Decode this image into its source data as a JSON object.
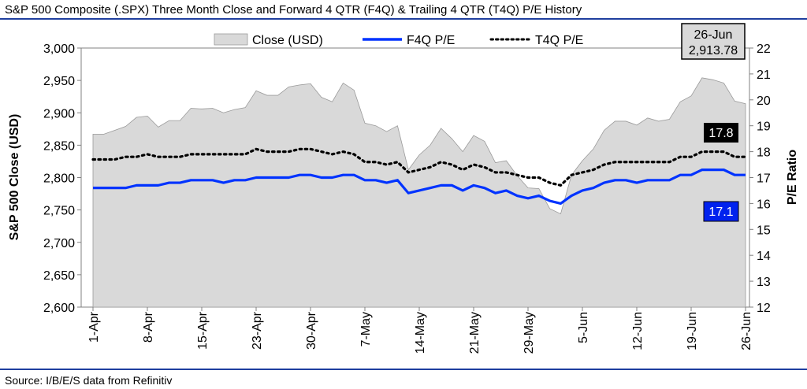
{
  "chart_data": {
    "type": "line",
    "title": "S&P 500 Composite (.SPX) Three Month Close and Forward 4 QTR (F4Q) & Trailing 4 QTR (T4Q) P/E History",
    "source": "Source: I/B/E/S data from Refinitiv",
    "ylabel": "S&P 500 Close (USD)",
    "y2label": "P/E Ratio",
    "ylim": [
      2600,
      3000
    ],
    "y2lim": [
      12,
      22
    ],
    "y_ticks": [
      "2,600",
      "2,650",
      "2,700",
      "2,750",
      "2,800",
      "2,850",
      "2,900",
      "2,950",
      "3,000"
    ],
    "y2_ticks": [
      "12",
      "13",
      "14",
      "15",
      "16",
      "17",
      "18",
      "19",
      "20",
      "21",
      "22"
    ],
    "x_ticks": [
      "1-Apr",
      "8-Apr",
      "15-Apr",
      "23-Apr",
      "30-Apr",
      "7-May",
      "14-May",
      "21-May",
      "29-May",
      "5-Jun",
      "12-Jun",
      "19-Jun",
      "26-Jun"
    ],
    "x_tick_index": [
      0,
      5,
      10,
      15,
      20,
      25,
      30,
      35,
      40,
      45,
      50,
      55,
      60
    ],
    "legend": [
      "Close (USD)",
      "F4Q P/E",
      "T4Q P/E"
    ],
    "series": [
      {
        "name": "Close (USD)",
        "type": "area",
        "axis": "left",
        "color": "#d9d9d9",
        "values": [
          2867,
          2867,
          2873,
          2879,
          2893,
          2895,
          2878,
          2888,
          2888,
          2907,
          2906,
          2907,
          2900,
          2905,
          2908,
          2934,
          2927,
          2927,
          2940,
          2943,
          2945,
          2924,
          2917,
          2946,
          2935,
          2884,
          2880,
          2871,
          2880,
          2812,
          2835,
          2850,
          2876,
          2860,
          2840,
          2865,
          2856,
          2823,
          2826,
          2803,
          2784,
          2783,
          2752,
          2744,
          2804,
          2826,
          2844,
          2873,
          2887,
          2887,
          2881,
          2892,
          2887,
          2890,
          2917,
          2926,
          2954,
          2951,
          2946,
          2918,
          2914
        ]
      },
      {
        "name": "F4Q P/E",
        "type": "line",
        "axis": "right",
        "color": "#0033ff",
        "values": [
          16.6,
          16.6,
          16.6,
          16.6,
          16.7,
          16.7,
          16.7,
          16.8,
          16.8,
          16.9,
          16.9,
          16.9,
          16.8,
          16.9,
          16.9,
          17.0,
          17.0,
          17.0,
          17.0,
          17.1,
          17.1,
          17.0,
          17.0,
          17.1,
          17.1,
          16.9,
          16.9,
          16.8,
          16.9,
          16.4,
          16.5,
          16.6,
          16.7,
          16.7,
          16.5,
          16.7,
          16.6,
          16.4,
          16.5,
          16.3,
          16.2,
          16.3,
          16.1,
          16.0,
          16.3,
          16.5,
          16.6,
          16.8,
          16.9,
          16.9,
          16.8,
          16.9,
          16.9,
          16.9,
          17.1,
          17.1,
          17.3,
          17.3,
          17.3,
          17.1,
          17.1
        ]
      },
      {
        "name": "T4Q P/E",
        "type": "line",
        "axis": "right",
        "color": "#000000",
        "dash": "dotted",
        "values": [
          17.7,
          17.7,
          17.7,
          17.8,
          17.8,
          17.9,
          17.8,
          17.8,
          17.8,
          17.9,
          17.9,
          17.9,
          17.9,
          17.9,
          17.9,
          18.1,
          18.0,
          18.0,
          18.0,
          18.1,
          18.1,
          18.0,
          17.9,
          18.0,
          17.9,
          17.6,
          17.6,
          17.5,
          17.6,
          17.2,
          17.3,
          17.4,
          17.6,
          17.5,
          17.3,
          17.5,
          17.4,
          17.2,
          17.2,
          17.1,
          17.0,
          17.0,
          16.8,
          16.7,
          17.1,
          17.2,
          17.3,
          17.5,
          17.6,
          17.6,
          17.6,
          17.6,
          17.6,
          17.6,
          17.8,
          17.8,
          18.0,
          18.0,
          18.0,
          17.8,
          17.8
        ]
      }
    ],
    "annotations": {
      "close_box": {
        "date": "26-Jun",
        "value": "2,913.78"
      },
      "t4q_label": "17.8",
      "f4q_label": "17.1"
    }
  }
}
